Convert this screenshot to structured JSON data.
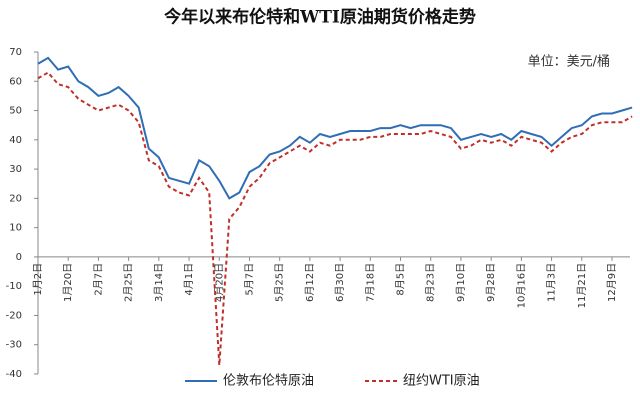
{
  "chart_data": {
    "type": "line",
    "title": "今年以来布伦特和WTI原油期货价格走势",
    "subtitle": "单位：美元/桶",
    "categories": [
      "1月2日",
      null,
      null,
      "1月20日",
      null,
      null,
      "2月7日",
      null,
      null,
      "2月25日",
      null,
      null,
      "3月14日",
      null,
      null,
      "4月1日",
      null,
      null,
      "4月20日",
      null,
      null,
      "5月7日",
      null,
      null,
      "5月25日",
      null,
      null,
      "6月12日",
      null,
      null,
      "6月30日",
      null,
      null,
      "7月18日",
      null,
      null,
      "8月5日",
      null,
      null,
      "8月23日",
      null,
      null,
      "9月10日",
      null,
      null,
      "9月28日",
      null,
      null,
      "10月16日",
      null,
      null,
      "11月3日",
      null,
      null,
      "11月21日",
      null,
      null,
      "12月9日",
      null,
      null
    ],
    "series": [
      {
        "name": "伦敦布伦特原油",
        "color": "#2f6db5",
        "line_style": "solid",
        "values": [
          66,
          68,
          64,
          65,
          60,
          58,
          55,
          56,
          58,
          55,
          51,
          37,
          34,
          27,
          26,
          25,
          33,
          31,
          26,
          20,
          22,
          29,
          31,
          35,
          36,
          38,
          41,
          39,
          42,
          41,
          42,
          43,
          43,
          43,
          44,
          44,
          45,
          44,
          45,
          45,
          45,
          44,
          40,
          41,
          42,
          41,
          42,
          40,
          43,
          42,
          41,
          38,
          41,
          44,
          45,
          48,
          49,
          49,
          50,
          51
        ]
      },
      {
        "name": "纽约WTI原油",
        "color": "#c0302b",
        "line_style": "dashed",
        "values": [
          61,
          63,
          59,
          58,
          54,
          52,
          50,
          51,
          52,
          50,
          46,
          33,
          31,
          24,
          22,
          21,
          27,
          22,
          -37,
          13,
          17,
          24,
          27,
          32,
          34,
          36,
          38,
          36,
          39,
          38,
          40,
          40,
          40,
          41,
          41,
          42,
          42,
          42,
          42,
          43,
          42,
          41,
          37,
          38,
          40,
          39,
          40,
          38,
          41,
          40,
          39,
          36,
          39,
          41,
          42,
          45,
          46,
          46,
          46,
          48
        ]
      }
    ],
    "ylim": [
      -40,
      70
    ],
    "yticks": [
      -40,
      -30,
      -20,
      -10,
      0,
      10,
      20,
      30,
      40,
      50,
      60,
      70
    ],
    "grid": false,
    "legend": "bottom"
  }
}
